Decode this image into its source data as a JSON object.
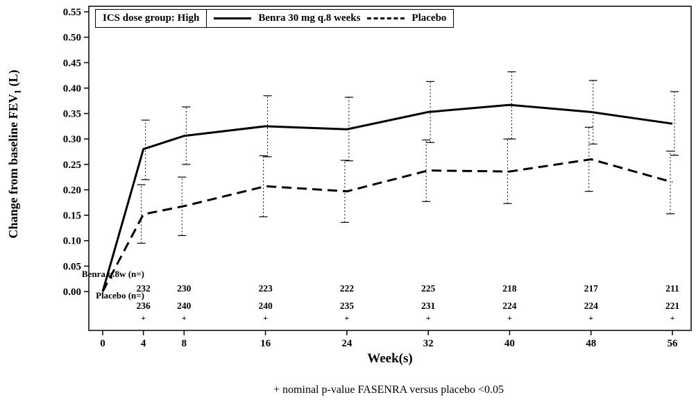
{
  "chart_data": {
    "type": "line",
    "title": "",
    "xlabel": "Week(s)",
    "ylabel": {
      "pre": "Change from baseline FEV",
      "sub": "1",
      "post": " (L)"
    },
    "ylim": [
      0,
      0.55
    ],
    "yticks": [
      0.0,
      0.05,
      0.1,
      0.15,
      0.2,
      0.25,
      0.3,
      0.35,
      0.4,
      0.45,
      0.5,
      0.55
    ],
    "x": [
      0,
      4,
      8,
      16,
      24,
      32,
      40,
      48,
      56
    ],
    "grid": "off",
    "legend": {
      "position": "top-left-inside",
      "title": "ICS dose group: High",
      "entries": [
        {
          "label": "Benra 30 mg q.8 weeks",
          "style": "solid"
        },
        {
          "label": "Placebo",
          "style": "dashed"
        }
      ]
    },
    "series": [
      {
        "name": "Benra 30 mg q.8 weeks",
        "style": "solid",
        "x_offset": 3,
        "values": [
          0.0,
          0.28,
          0.306,
          0.325,
          0.319,
          0.353,
          0.367,
          0.353,
          0.33
        ],
        "err_low": [
          null,
          0.22,
          0.25,
          0.265,
          0.257,
          0.293,
          0.3,
          0.29,
          0.268
        ],
        "err_high": [
          null,
          0.337,
          0.363,
          0.385,
          0.382,
          0.413,
          0.432,
          0.415,
          0.393
        ]
      },
      {
        "name": "Placebo",
        "style": "dashed",
        "x_offset": -3,
        "values": [
          0.0,
          0.152,
          0.168,
          0.207,
          0.197,
          0.238,
          0.236,
          0.26,
          0.215
        ],
        "err_low": [
          null,
          0.095,
          0.11,
          0.147,
          0.136,
          0.177,
          0.173,
          0.197,
          0.153
        ],
        "err_high": [
          null,
          0.21,
          0.225,
          0.267,
          0.258,
          0.298,
          0.3,
          0.323,
          0.276
        ]
      }
    ],
    "n_table": {
      "weeks": [
        4,
        8,
        16,
        24,
        32,
        40,
        48,
        56
      ],
      "rows": [
        {
          "label": "Benra q.8w (n=)",
          "values": [
            232,
            230,
            223,
            222,
            225,
            218,
            217,
            211
          ]
        },
        {
          "label": "Placebo (n=)",
          "values": [
            236,
            240,
            240,
            235,
            231,
            224,
            224,
            221
          ]
        }
      ],
      "significance_marker": "+"
    },
    "footnote": "+ nominal p-value FASENRA versus placebo <0.05"
  }
}
